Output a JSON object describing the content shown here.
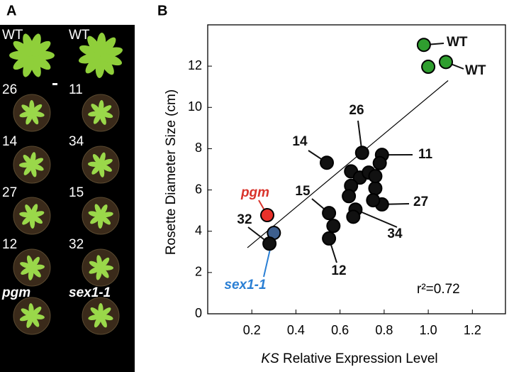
{
  "panels": [
    "A",
    "B"
  ],
  "photo_labels": [
    "WT",
    "WT",
    "26",
    "11",
    "14",
    "34",
    "27",
    "15",
    "12",
    "32",
    "pgm",
    "sex1-1"
  ],
  "chart_data": {
    "type": "scatter",
    "y_label": "Rosette Diameter Size (cm)",
    "x_label_parts": [
      "KS",
      "Relative Expression Level"
    ],
    "x": [
      0.98,
      1.08,
      1.0,
      0.27,
      0.3,
      0.28,
      0.54,
      0.55,
      0.55,
      0.7,
      0.79,
      0.79,
      0.67,
      0.65,
      0.69,
      0.65,
      0.64,
      0.66,
      0.73,
      0.76,
      0.75,
      0.78,
      0.76,
      0.57
    ],
    "y": [
      13.03,
      12.2,
      11.97,
      4.78,
      3.92,
      3.4,
      7.32,
      4.88,
      3.65,
      7.8,
      7.7,
      5.3,
      5.05,
      6.9,
      6.6,
      6.2,
      5.7,
      4.7,
      6.84,
      6.08,
      5.5,
      7.3,
      6.67,
      4.26
    ],
    "point_colors": [
      "#2f9e2f",
      "#2f9e2f",
      "#2f9e2f",
      "#e8302a",
      "#3d5f8e",
      "#111111",
      "#111111",
      "#111111",
      "#111111",
      "#111111",
      "#111111",
      "#111111",
      "#111111",
      "#111111",
      "#111111",
      "#111111",
      "#111111",
      "#111111",
      "#111111",
      "#111111",
      "#111111",
      "#111111",
      "#111111",
      "#111111"
    ],
    "labels": [
      "WT",
      "WT",
      null,
      "pgm",
      "sex1-1",
      "32",
      "14",
      "15",
      "12",
      "26",
      "11",
      "27",
      "34",
      null,
      null,
      null,
      null,
      null,
      null,
      null,
      null,
      null,
      null,
      null
    ],
    "label_colors": [
      "#111111",
      "#111111",
      null,
      "#d9332b",
      "#2a7fd4",
      "#111111",
      "#111111",
      "#111111",
      "#111111",
      "#111111",
      "#111111",
      "#111111",
      "#111111",
      null,
      null,
      null,
      null,
      null,
      null,
      null,
      null,
      null,
      null,
      null
    ],
    "fit": {
      "x": [
        0.18,
        1.09
      ],
      "y": [
        3.2,
        11.3
      ]
    },
    "annotation": "r²=0.72",
    "xlim": [
      0,
      1.35
    ],
    "ylim": [
      0,
      14
    ],
    "xticks": [
      0.2,
      0.4,
      0.6,
      0.8,
      1.0,
      1.2
    ],
    "yticks": [
      0,
      2,
      4,
      6,
      8,
      10,
      12
    ]
  }
}
